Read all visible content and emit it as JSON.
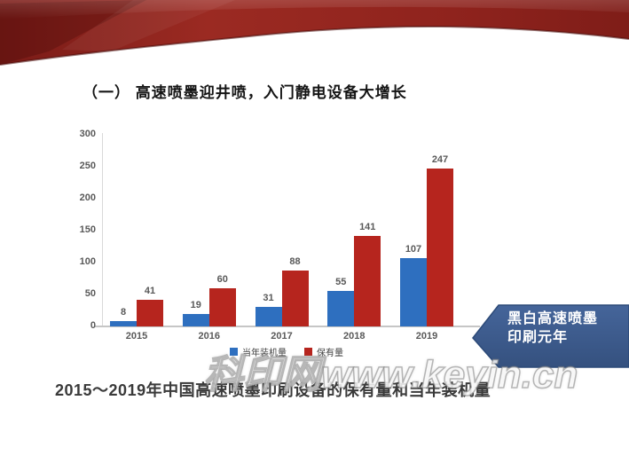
{
  "slide": {
    "title": "（一） 高速喷墨迎井喷，入门静电设备大增长",
    "caption": "2015～2019年中国高速喷墨印刷设备的保有量和当年装机量",
    "callout": {
      "line1": "黑白高速喷墨",
      "line2": "印刷元年"
    },
    "watermark": "科印网www.keyin.cn"
  },
  "colors": {
    "ribbon_dark": "#7a1b17",
    "ribbon_mid": "#9b2a22",
    "callout_fill": "#3d5c8f",
    "callout_border": "#2c4a78",
    "series_blue": "#2e6fbf",
    "series_red": "#b6251e",
    "axis_gray": "#c6c6c6",
    "label_gray": "#595959"
  },
  "chart_data": {
    "type": "bar",
    "title": "",
    "xlabel": "",
    "ylabel": "",
    "categories": [
      "2015",
      "2016",
      "2017",
      "2018",
      "2019"
    ],
    "series": [
      {
        "name": "当年装机量",
        "color": "#2e6fbf",
        "values": [
          8,
          19,
          31,
          55,
          107
        ]
      },
      {
        "name": "保有量",
        "color": "#b6251e",
        "values": [
          41,
          60,
          88,
          141,
          247
        ]
      }
    ],
    "ylim": [
      0,
      300
    ],
    "yticks": [
      0,
      50,
      100,
      150,
      200,
      250,
      300
    ],
    "grid": false,
    "legend_position": "bottom",
    "value_labels": true
  }
}
